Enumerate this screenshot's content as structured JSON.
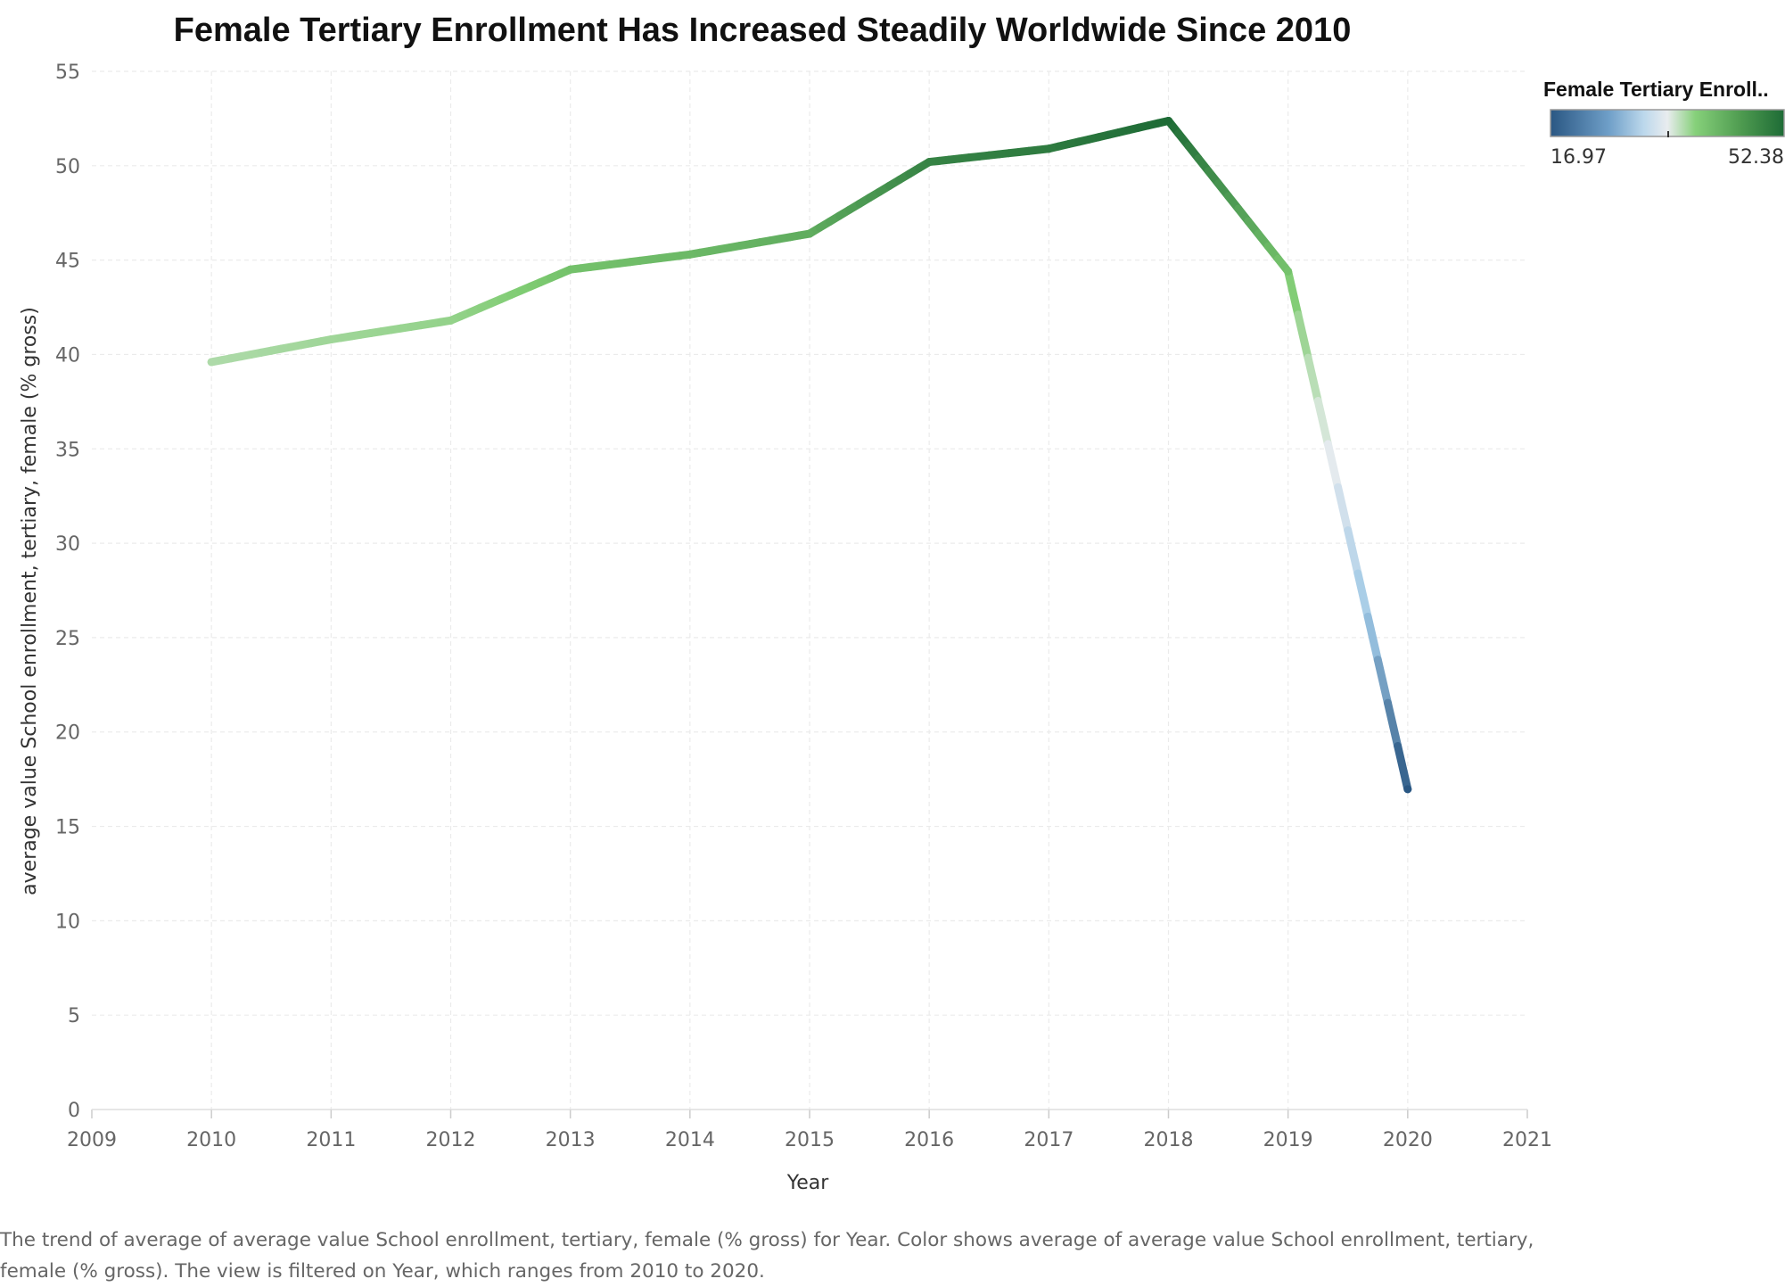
{
  "chart_data": {
    "type": "line",
    "title": "Female Tertiary Enrollment Has Increased Steadily Worldwide Since 2010",
    "xlabel": "Year",
    "ylabel": "average value School enrollment, tertiary, female (% gross)",
    "x": [
      2010,
      2011,
      2012,
      2013,
      2014,
      2015,
      2016,
      2017,
      2018,
      2019,
      2020
    ],
    "values": [
      39.6,
      40.8,
      41.8,
      44.5,
      45.3,
      46.4,
      50.2,
      50.9,
      52.38,
      44.4,
      16.97
    ],
    "xlim": [
      2009,
      2021
    ],
    "ylim": [
      0,
      55
    ],
    "xticks": [
      "2009",
      "2010",
      "2011",
      "2012",
      "2013",
      "2014",
      "2015",
      "2016",
      "2017",
      "2018",
      "2019",
      "2020",
      "2021"
    ],
    "yticks": [
      "0",
      "5",
      "10",
      "15",
      "20",
      "25",
      "30",
      "35",
      "40",
      "45",
      "50",
      "55"
    ],
    "grid": true,
    "color_legend": {
      "title": "Female Tertiary Enroll..",
      "min_label": "16.97",
      "max_label": "52.38",
      "min": 16.97,
      "max": 52.38,
      "colors": [
        "#2a5783",
        "#9ec8e6",
        "#e9ecef",
        "#7fcc72",
        "#1e6b36"
      ]
    },
    "caption": "The trend of average of average value School enrollment, tertiary, female (% gross) for Year.  Color shows average of average value School enrollment, tertiary, female (% gross). The view is filtered on Year, which ranges from 2010 to 2020."
  }
}
